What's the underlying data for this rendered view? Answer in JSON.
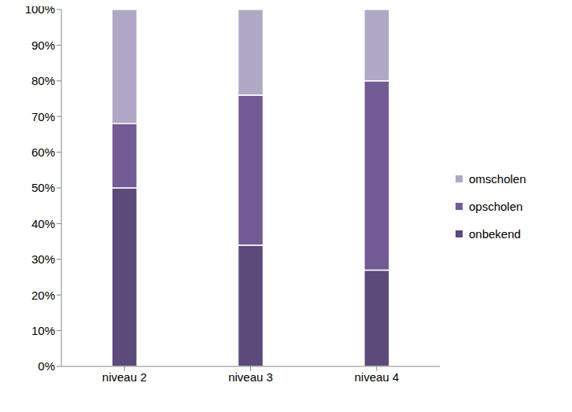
{
  "chart_data": {
    "type": "bar",
    "stacked": true,
    "categories": [
      "niveau 2",
      "niveau 3",
      "niveau 4"
    ],
    "series": [
      {
        "name": "onbekend",
        "color": "#5b4a7a",
        "values": [
          50,
          34,
          27
        ]
      },
      {
        "name": "opscholen",
        "color": "#735b96",
        "values": [
          18,
          42,
          53
        ]
      },
      {
        "name": "omscholen",
        "color": "#b1a8c6",
        "values": [
          32,
          24,
          20
        ]
      }
    ],
    "ylim": [
      0,
      100
    ],
    "yticks": [
      {
        "value": 0,
        "label": "0%"
      },
      {
        "value": 10,
        "label": "10%"
      },
      {
        "value": 20,
        "label": "20%"
      },
      {
        "value": 30,
        "label": "30%"
      },
      {
        "value": 40,
        "label": "40%"
      },
      {
        "value": 50,
        "label": "50%"
      },
      {
        "value": 60,
        "label": "60%"
      },
      {
        "value": 70,
        "label": "70%"
      },
      {
        "value": 80,
        "label": "80%"
      },
      {
        "value": 90,
        "label": "90%"
      },
      {
        "value": 100,
        "label": "100%"
      }
    ],
    "grid": false,
    "legend": "right"
  }
}
